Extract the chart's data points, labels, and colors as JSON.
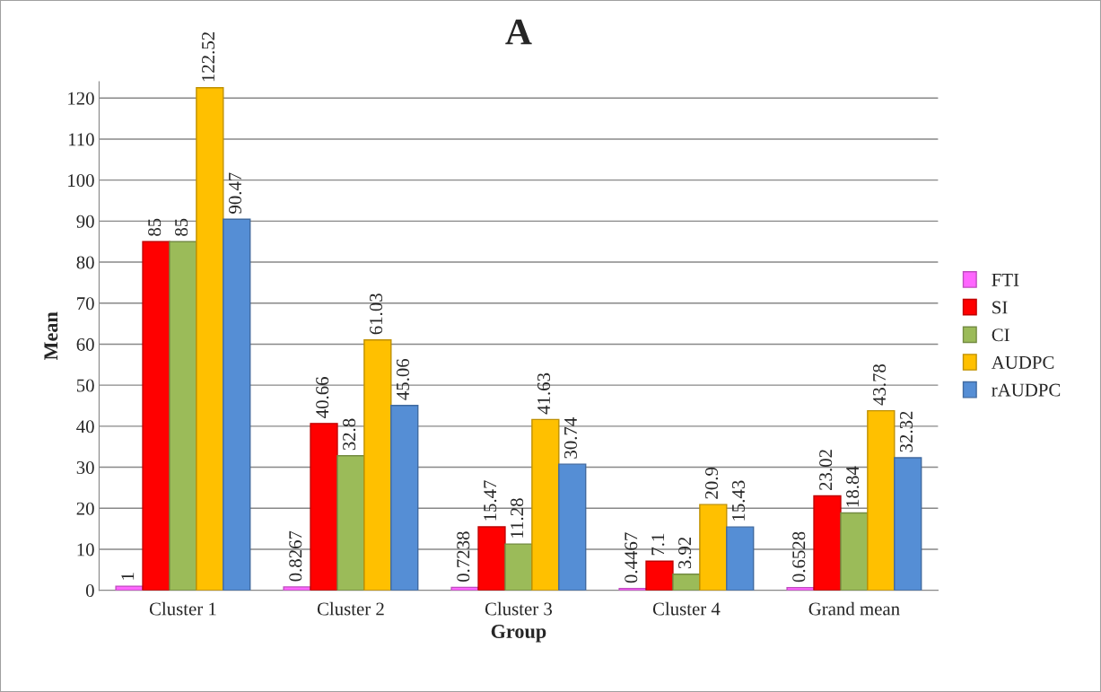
{
  "chart_data": {
    "type": "bar",
    "title": "A",
    "xlabel": "Group",
    "ylabel": "Mean",
    "categories": [
      "Cluster 1",
      "Cluster 2",
      "Cluster 3",
      "Cluster 4",
      "Grand mean"
    ],
    "series": [
      {
        "name": "FTI",
        "color": "#ff66ff",
        "values": [
          1,
          0.8267,
          0.7238,
          0.4467,
          0.6528
        ]
      },
      {
        "name": "SI",
        "color": "#ff0000",
        "values": [
          85,
          40.66,
          15.47,
          7.1,
          23.02
        ]
      },
      {
        "name": "CI",
        "color": "#9bbb59",
        "values": [
          85,
          32.8,
          11.28,
          3.92,
          18.84
        ]
      },
      {
        "name": "AUDPC",
        "color": "#ffc000",
        "values": [
          122.52,
          61.03,
          41.63,
          20.9,
          43.78
        ]
      },
      {
        "name": "rAUDPC",
        "color": "#558ed5",
        "values": [
          90.47,
          45.06,
          30.74,
          15.43,
          32.32
        ]
      }
    ],
    "ylim": [
      0,
      124
    ],
    "yticks": [
      0,
      10,
      20,
      30,
      40,
      50,
      60,
      70,
      80,
      90,
      100,
      110,
      120
    ],
    "grid": "y",
    "legend": "right",
    "data_labels": true
  }
}
